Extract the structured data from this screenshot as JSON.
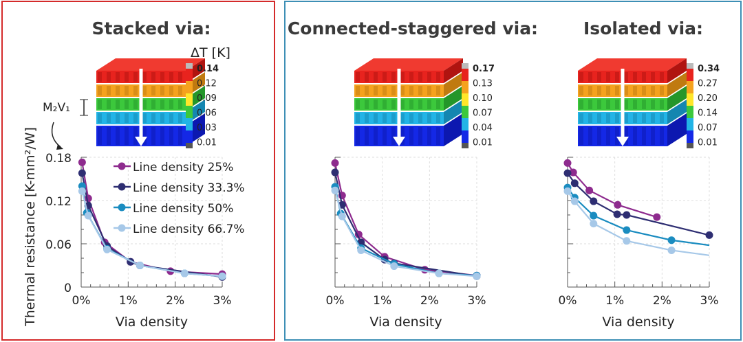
{
  "colors": {
    "left_frame": "#d42a2a",
    "right_frame": "#3d8fb5"
  },
  "legend_label_prefix": "Line density",
  "annotations": {
    "m2v1_label": "M₂V₁",
    "delta_t_label": "ΔT [K]"
  },
  "chart_data": [
    {
      "type": "line",
      "title": "Stacked via:",
      "xlabel": "Via density",
      "ylabel": "Thermal resistance [K-mm²/W]",
      "xlim": [
        0,
        3
      ],
      "ylim": [
        0,
        0.18
      ],
      "xticks": [
        "0%",
        "1%",
        "2%",
        "3%"
      ],
      "yticks": [
        "0",
        "0.06",
        "0.12",
        "0.18"
      ],
      "grid": true,
      "legend": "top-right",
      "colorbar": {
        "labels": [
          "0.14",
          "0.12",
          "0.09",
          "0.06",
          "0.03",
          "0.01"
        ]
      },
      "series": [
        {
          "name": "Line density 25%",
          "color": "#8e2b8e",
          "x": [
            0.02,
            0.15,
            0.5,
            1.05,
            1.9,
            3
          ],
          "y": [
            0.173,
            0.123,
            0.062,
            0.035,
            0.022,
            0.018
          ]
        },
        {
          "name": "Line density 33.3%",
          "color": "#2e2e72",
          "x": [
            0.02,
            0.15,
            0.55,
            1.05,
            1.25,
            3
          ],
          "y": [
            0.158,
            0.113,
            0.057,
            0.035,
            0.03,
            0.014
          ]
        },
        {
          "name": "Line density 50%",
          "color": "#1a8cc0",
          "x": [
            0.02,
            0.12,
            0.55,
            1.25,
            2.2,
            3
          ],
          "y": [
            0.14,
            0.103,
            0.053,
            0.03,
            0.019,
            0.015
          ]
        },
        {
          "name": "Line density 66.7%",
          "color": "#a6c8e8",
          "x": [
            0.02,
            0.15,
            0.55,
            1.25,
            2.2,
            3
          ],
          "y": [
            0.133,
            0.099,
            0.052,
            0.03,
            0.019,
            0.015
          ]
        }
      ]
    },
    {
      "type": "line",
      "title": "Connected-staggered via:",
      "xlabel": "Via density",
      "xlim": [
        0,
        3
      ],
      "ylim": [
        0,
        0.18
      ],
      "xticks": [
        "0%",
        "1%",
        "2%",
        "3%"
      ],
      "grid": true,
      "colorbar": {
        "labels": [
          "0.17",
          "0.13",
          "0.10",
          "0.07",
          "0.04",
          "0.01"
        ]
      },
      "series": [
        {
          "color": "#8e2b8e",
          "x": [
            0,
            0.15,
            0.5,
            1.05,
            1.9,
            3
          ],
          "y": [
            0.172,
            0.127,
            0.073,
            0.042,
            0.024,
            0.016
          ]
        },
        {
          "color": "#2e2e72",
          "x": [
            0,
            0.15,
            0.55,
            1.05,
            1.25,
            3
          ],
          "y": [
            0.159,
            0.114,
            0.062,
            0.038,
            0.033,
            0.015
          ]
        },
        {
          "color": "#1a8cc0",
          "x": [
            0,
            0.12,
            0.55,
            1.25,
            2.2,
            3
          ],
          "y": [
            0.139,
            0.102,
            0.054,
            0.032,
            0.019,
            0.016
          ]
        },
        {
          "color": "#a6c8e8",
          "x": [
            0,
            0.15,
            0.55,
            1.25,
            2.2,
            3
          ],
          "y": [
            0.134,
            0.098,
            0.051,
            0.029,
            0.019,
            0.015
          ]
        }
      ]
    },
    {
      "type": "line",
      "title": "Isolated via:",
      "xlabel": "Via density",
      "xlim": [
        0,
        3
      ],
      "ylim": [
        0,
        0.18
      ],
      "xticks": [
        "0%",
        "1%",
        "2%",
        "3%"
      ],
      "grid": true,
      "colorbar": {
        "labels": [
          "0.34",
          "0.27",
          "0.20",
          "0.14",
          "0.07",
          "0.01"
        ]
      },
      "series": [
        {
          "color": "#8e2b8e",
          "x": [
            0,
            0.12,
            0.46,
            1.06,
            1.89
          ],
          "y": [
            0.172,
            0.159,
            0.134,
            0.114,
            0.097
          ]
        },
        {
          "color": "#2e2e72",
          "x": [
            0,
            0.15,
            0.55,
            1.05,
            1.25,
            3
          ],
          "y": [
            0.158,
            0.144,
            0.119,
            0.101,
            0.1,
            0.072
          ]
        },
        {
          "color": "#1a8cc0",
          "x": [
            0,
            0.15,
            0.55,
            1.25,
            2.2
          ],
          "y": [
            0.138,
            0.124,
            0.099,
            0.079,
            0.065
          ],
          "curve_end": [
            3,
            0.058
          ]
        },
        {
          "color": "#a6c8e8",
          "x": [
            0,
            0.15,
            0.55,
            1.25,
            2.2
          ],
          "y": [
            0.133,
            0.119,
            0.088,
            0.064,
            0.051
          ],
          "curve_end": [
            3,
            0.044
          ]
        }
      ]
    }
  ]
}
